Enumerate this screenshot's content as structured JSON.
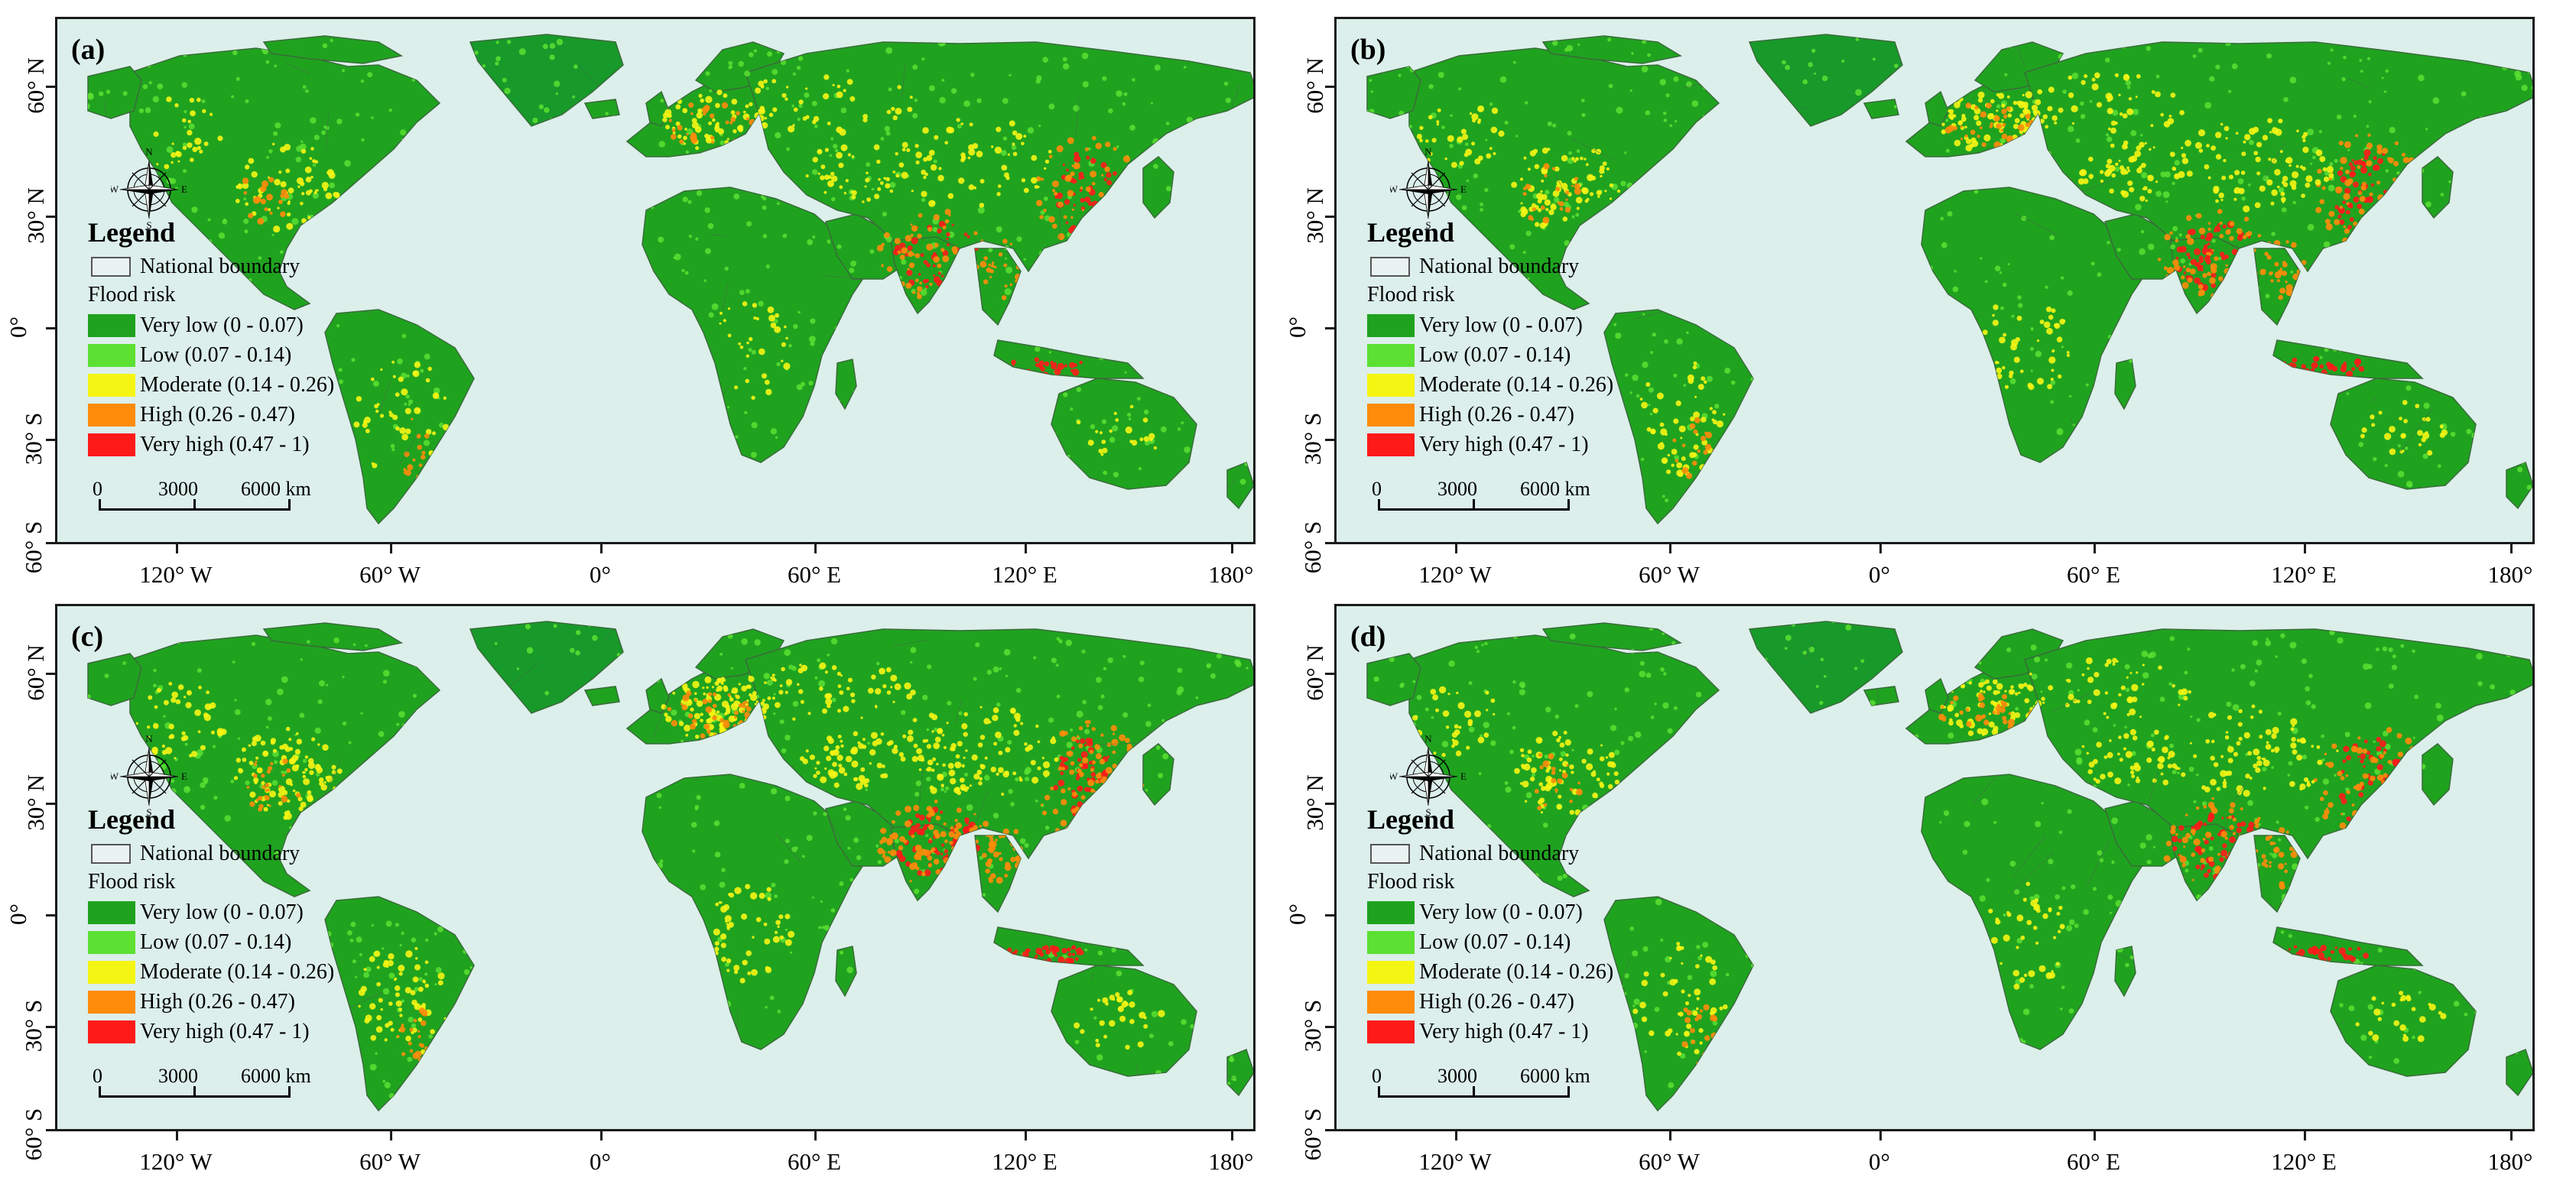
{
  "panels": [
    {
      "label": "(a)",
      "variant": 0
    },
    {
      "label": "(b)",
      "variant": 1
    },
    {
      "label": "(c)",
      "variant": 2
    },
    {
      "label": "(d)",
      "variant": 3
    }
  ],
  "legend": {
    "title": "Legend",
    "boundary_label": "National boundary",
    "risk_title": "Flood risk",
    "classes": [
      {
        "label": "Very low (0 - 0.07)",
        "color": "#1fa31f"
      },
      {
        "label": "Low (0.07 - 0.14)",
        "color": "#5ce032"
      },
      {
        "label": "Moderate (0.14 - 0.26)",
        "color": "#f5f514"
      },
      {
        "label": "High (0.26 - 0.47)",
        "color": "#ff8c0a"
      },
      {
        "label": "Very high (0.47 - 1)",
        "color": "#ff1a1a"
      }
    ]
  },
  "scale_bar": {
    "ticks": [
      "0",
      "3000",
      "6000 km"
    ]
  },
  "compass": {
    "n": "N",
    "s": "S",
    "e": "E",
    "w": "W"
  },
  "axes": {
    "x_ticks": [
      "120° W",
      "60° W",
      "0°",
      "60° E",
      "120° E",
      "180°"
    ],
    "y_ticks": [
      "60° N",
      "30° N",
      "0°",
      "30° S",
      "60° S"
    ]
  },
  "colors": {
    "ocean": "#dcefeb",
    "land_base": "#1fa31f",
    "greenland": "#179a2a"
  }
}
